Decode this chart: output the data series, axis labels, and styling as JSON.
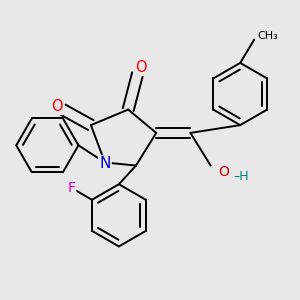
{
  "bg_color": "#e8e8e8",
  "bond_color": "#000000",
  "bond_width": 1.4,
  "atom_colors": {
    "N": "#0000cc",
    "O": "#ff0000",
    "OH_O": "#cc0000",
    "OH_H": "#008080",
    "F": "#cc00cc",
    "C": "#000000"
  },
  "font_size": 9,
  "fig_size": [
    3.0,
    3.0
  ],
  "dpi": 100
}
